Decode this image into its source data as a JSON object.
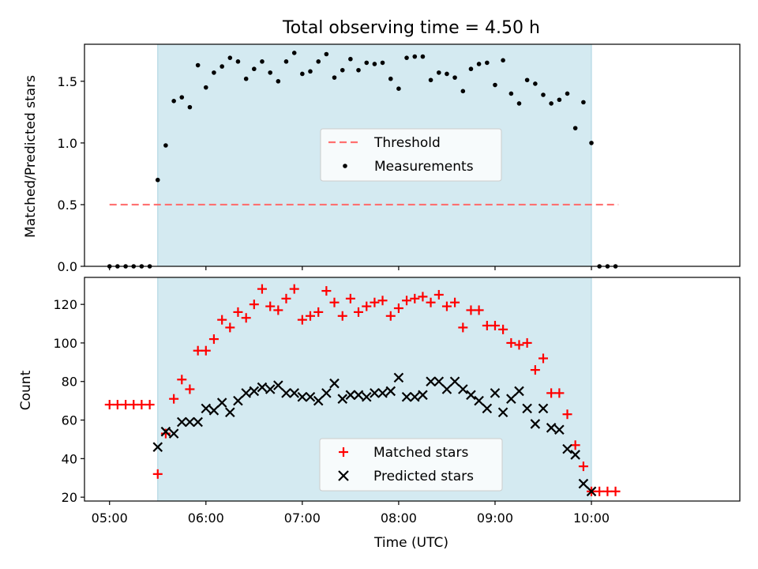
{
  "figure": {
    "title": "Total observing time = 4.50 h",
    "x_label": "Time (UTC)",
    "x_ticks": [
      "05:00",
      "06:00",
      "07:00",
      "08:00",
      "09:00",
      "10:00"
    ],
    "shade_color": "#d4eaf1"
  },
  "chart_data": [
    {
      "type": "scatter",
      "ylabel": "Matched/Predicted stars",
      "ylim": [
        0,
        1.8
      ],
      "yticks": [
        "0.0",
        "0.5",
        "1.0",
        "1.5"
      ],
      "xlim": [
        -0.26,
        6.54
      ],
      "observing_window": [
        0.5,
        5.0
      ],
      "legend": {
        "placement": "center",
        "entries": [
          "Threshold",
          "Measurements"
        ]
      },
      "threshold": {
        "name": "Threshold",
        "value": 0.5,
        "x_range": [
          0.0,
          5.28
        ],
        "color": "#ff7070",
        "style": "dashed"
      },
      "series": [
        {
          "name": "Measurements",
          "color": "#000000",
          "x": [
            0.0,
            0.083,
            0.167,
            0.25,
            0.333,
            0.417,
            0.5,
            0.583,
            0.667,
            0.75,
            0.833,
            0.917,
            1.0,
            1.083,
            1.167,
            1.25,
            1.333,
            1.417,
            1.5,
            1.583,
            1.667,
            1.75,
            1.833,
            1.917,
            2.0,
            2.083,
            2.167,
            2.25,
            2.333,
            2.417,
            2.5,
            2.583,
            2.667,
            2.75,
            2.833,
            2.917,
            3.0,
            3.083,
            3.167,
            3.25,
            3.333,
            3.417,
            3.5,
            3.583,
            3.667,
            3.75,
            3.833,
            3.917,
            4.0,
            4.083,
            4.167,
            4.25,
            4.333,
            4.417,
            4.5,
            4.583,
            4.667,
            4.75,
            4.833,
            4.917,
            5.0,
            5.083,
            5.167,
            5.25
          ],
          "y": [
            0,
            0,
            0,
            0,
            0,
            0,
            0.7,
            0.98,
            1.34,
            1.37,
            1.29,
            1.63,
            1.45,
            1.57,
            1.62,
            1.69,
            1.66,
            1.52,
            1.6,
            1.66,
            1.57,
            1.5,
            1.66,
            1.73,
            1.56,
            1.58,
            1.66,
            1.72,
            1.53,
            1.59,
            1.68,
            1.59,
            1.65,
            1.64,
            1.65,
            1.52,
            1.44,
            1.69,
            1.7,
            1.7,
            1.51,
            1.57,
            1.56,
            1.53,
            1.42,
            1.6,
            1.64,
            1.65,
            1.47,
            1.67,
            1.4,
            1.32,
            1.51,
            1.48,
            1.39,
            1.32,
            1.35,
            1.4,
            1.12,
            1.33,
            1.0,
            0,
            0,
            0
          ]
        }
      ]
    },
    {
      "type": "scatter",
      "ylabel": "Count",
      "ylim": [
        18,
        134
      ],
      "yticks": [
        "20",
        "40",
        "60",
        "80",
        "100",
        "120"
      ],
      "xlim": [
        -0.26,
        6.54
      ],
      "observing_window": [
        0.5,
        5.0
      ],
      "legend": {
        "placement": "lower center",
        "entries": [
          "Matched stars",
          "Predicted stars"
        ]
      },
      "series": [
        {
          "name": "Matched stars",
          "marker": "plus",
          "color": "#ff0000",
          "x": [
            0.0,
            0.083,
            0.167,
            0.25,
            0.333,
            0.417,
            0.5,
            0.583,
            0.667,
            0.75,
            0.833,
            0.917,
            1.0,
            1.083,
            1.167,
            1.25,
            1.333,
            1.417,
            1.5,
            1.583,
            1.667,
            1.75,
            1.833,
            1.917,
            2.0,
            2.083,
            2.167,
            2.25,
            2.333,
            2.417,
            2.5,
            2.583,
            2.667,
            2.75,
            2.833,
            2.917,
            3.0,
            3.083,
            3.167,
            3.25,
            3.333,
            3.417,
            3.5,
            3.583,
            3.667,
            3.75,
            3.833,
            3.917,
            4.0,
            4.083,
            4.167,
            4.25,
            4.333,
            4.417,
            4.5,
            4.583,
            4.667,
            4.75,
            4.833,
            4.917,
            5.0,
            5.083,
            5.167,
            5.25
          ],
          "y": [
            68,
            68,
            68,
            68,
            68,
            68,
            32,
            53,
            71,
            81,
            76,
            96,
            96,
            102,
            112,
            108,
            116,
            113,
            120,
            128,
            119,
            117,
            123,
            128,
            112,
            114,
            116,
            127,
            121,
            114,
            123,
            116,
            119,
            121,
            122,
            114,
            118,
            122,
            123,
            124,
            121,
            125,
            119,
            121,
            108,
            117,
            117,
            109,
            109,
            107,
            100,
            99,
            100,
            86,
            92,
            74,
            74,
            63,
            47,
            36,
            23,
            23,
            23,
            23
          ]
        },
        {
          "name": "Predicted stars",
          "marker": "x",
          "color": "#000000",
          "x": [
            0.5,
            0.583,
            0.667,
            0.75,
            0.833,
            0.917,
            1.0,
            1.083,
            1.167,
            1.25,
            1.333,
            1.417,
            1.5,
            1.583,
            1.667,
            1.75,
            1.833,
            1.917,
            2.0,
            2.083,
            2.167,
            2.25,
            2.333,
            2.417,
            2.5,
            2.583,
            2.667,
            2.75,
            2.833,
            2.917,
            3.0,
            3.083,
            3.167,
            3.25,
            3.333,
            3.417,
            3.5,
            3.583,
            3.667,
            3.75,
            3.833,
            3.917,
            4.0,
            4.083,
            4.167,
            4.25,
            4.333,
            4.417,
            4.5,
            4.583,
            4.667,
            4.75,
            4.833,
            4.917,
            5.0
          ],
          "y": [
            46,
            54,
            53,
            59,
            59,
            59,
            66,
            65,
            69,
            64,
            70,
            74,
            75,
            77,
            76,
            78,
            74,
            74,
            72,
            72,
            70,
            74,
            79,
            71,
            73,
            73,
            72,
            74,
            74,
            75,
            82,
            72,
            72,
            73,
            80,
            80,
            76,
            80,
            76,
            73,
            70,
            66,
            74,
            64,
            71,
            75,
            66,
            58,
            66,
            56,
            55,
            45,
            42,
            27,
            23
          ]
        }
      ]
    }
  ]
}
